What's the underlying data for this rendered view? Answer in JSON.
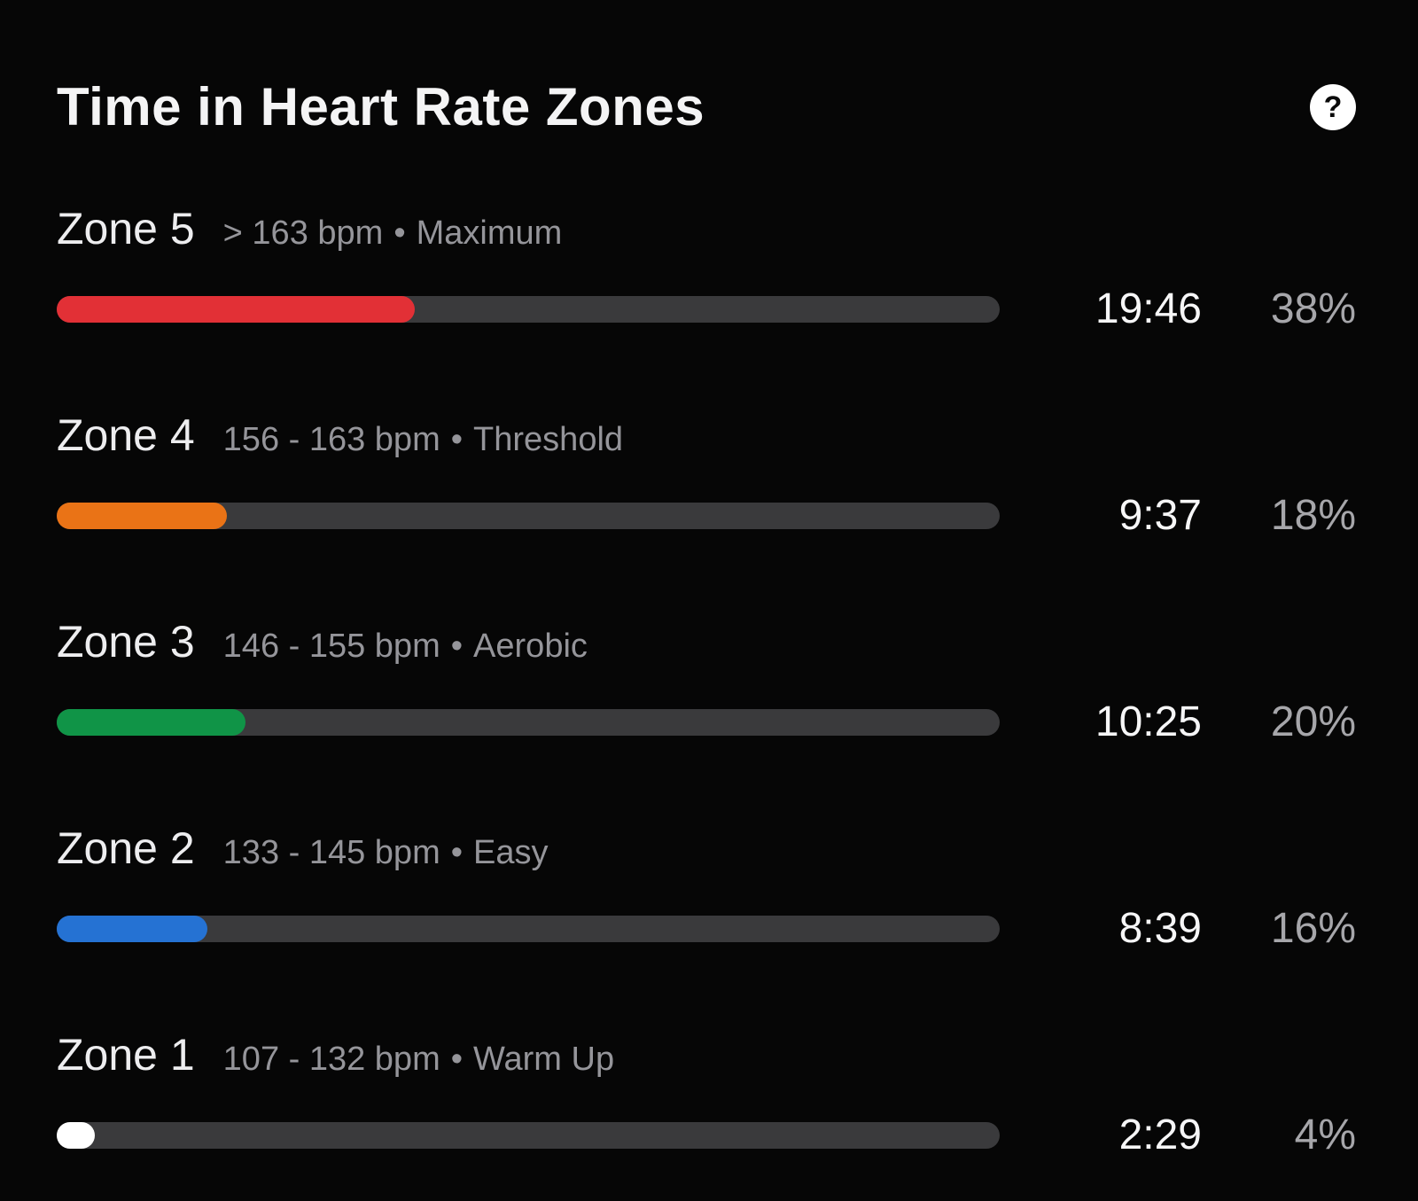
{
  "header": {
    "title": "Time in Heart Rate Zones",
    "help_glyph": "?"
  },
  "separator": "•",
  "zones": [
    {
      "name": "Zone 5",
      "range": "> 163 bpm",
      "descriptor": "Maximum",
      "time": "19:46",
      "percent": "38%",
      "percent_value": 38,
      "color": "#e23036"
    },
    {
      "name": "Zone 4",
      "range": "156 - 163 bpm",
      "descriptor": "Threshold",
      "time": "9:37",
      "percent": "18%",
      "percent_value": 18,
      "color": "#ea7316"
    },
    {
      "name": "Zone 3",
      "range": "146 - 155 bpm",
      "descriptor": "Aerobic",
      "time": "10:25",
      "percent": "20%",
      "percent_value": 20,
      "color": "#109447"
    },
    {
      "name": "Zone 2",
      "range": "133 - 145 bpm",
      "descriptor": "Easy",
      "time": "8:39",
      "percent": "16%",
      "percent_value": 16,
      "color": "#2572d3"
    },
    {
      "name": "Zone 1",
      "range": "107 - 132 bpm",
      "descriptor": "Warm Up",
      "time": "2:29",
      "percent": "4%",
      "percent_value": 4,
      "color": "#ffffff"
    }
  ],
  "colors": {
    "background": "#060606",
    "track": "#3a3a3c",
    "title_text": "#f4f4f5",
    "zone_name_text": "#ededef",
    "zone_desc_text": "#95959a",
    "time_text": "#f6f6f7",
    "percent_text": "#a6a6aa"
  },
  "chart_data": {
    "type": "bar",
    "orientation": "horizontal",
    "title": "Time in Heart Rate Zones",
    "categories": [
      "Zone 5",
      "Zone 4",
      "Zone 3",
      "Zone 2",
      "Zone 1"
    ],
    "category_descriptions": [
      "> 163 bpm • Maximum",
      "156 - 163 bpm • Threshold",
      "146 - 155 bpm • Aerobic",
      "133 - 145 bpm • Easy",
      "107 - 132 bpm • Warm Up"
    ],
    "series": [
      {
        "name": "percent_of_time",
        "values": [
          38,
          18,
          20,
          16,
          4
        ],
        "unit": "%"
      },
      {
        "name": "time_in_zone",
        "values": [
          "19:46",
          "9:37",
          "10:25",
          "8:39",
          "2:29"
        ],
        "unit": "mm:ss"
      }
    ],
    "bar_colors": [
      "#e23036",
      "#ea7316",
      "#109447",
      "#2572d3",
      "#ffffff"
    ],
    "xlim": [
      0,
      100
    ],
    "grid": false,
    "legend": false
  }
}
